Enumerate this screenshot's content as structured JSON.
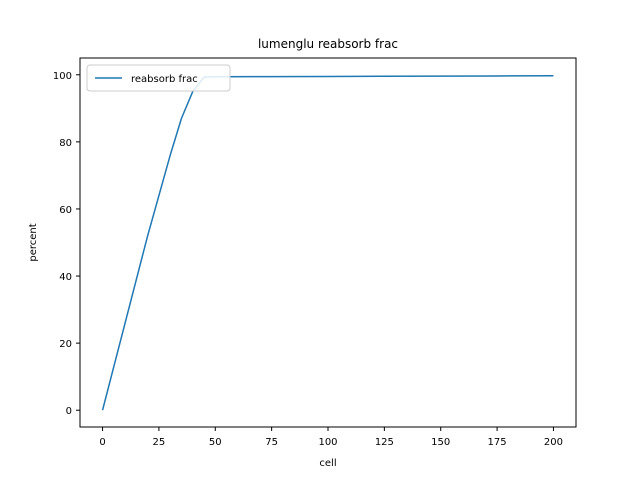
{
  "chart_data": {
    "type": "line",
    "title": "lumenglu reabsorb frac",
    "xlabel": "cell",
    "ylabel": "percent",
    "xlim": [
      -10,
      210
    ],
    "ylim": [
      -5,
      105
    ],
    "xticks": [
      0,
      25,
      50,
      75,
      100,
      125,
      150,
      175,
      200
    ],
    "yticks": [
      0,
      20,
      40,
      60,
      80,
      100
    ],
    "grid": false,
    "legend_position": "upper-left",
    "series": [
      {
        "name": "reabsorb frac",
        "color": "#1f77b4",
        "x": [
          0,
          5,
          10,
          15,
          20,
          25,
          30,
          35,
          40,
          45,
          50,
          75,
          100,
          125,
          150,
          175,
          200
        ],
        "y": [
          0,
          13,
          26,
          39,
          52,
          64,
          76,
          87,
          95,
          99.3,
          99.4,
          99.45,
          99.5,
          99.55,
          99.6,
          99.65,
          99.7
        ]
      }
    ]
  }
}
